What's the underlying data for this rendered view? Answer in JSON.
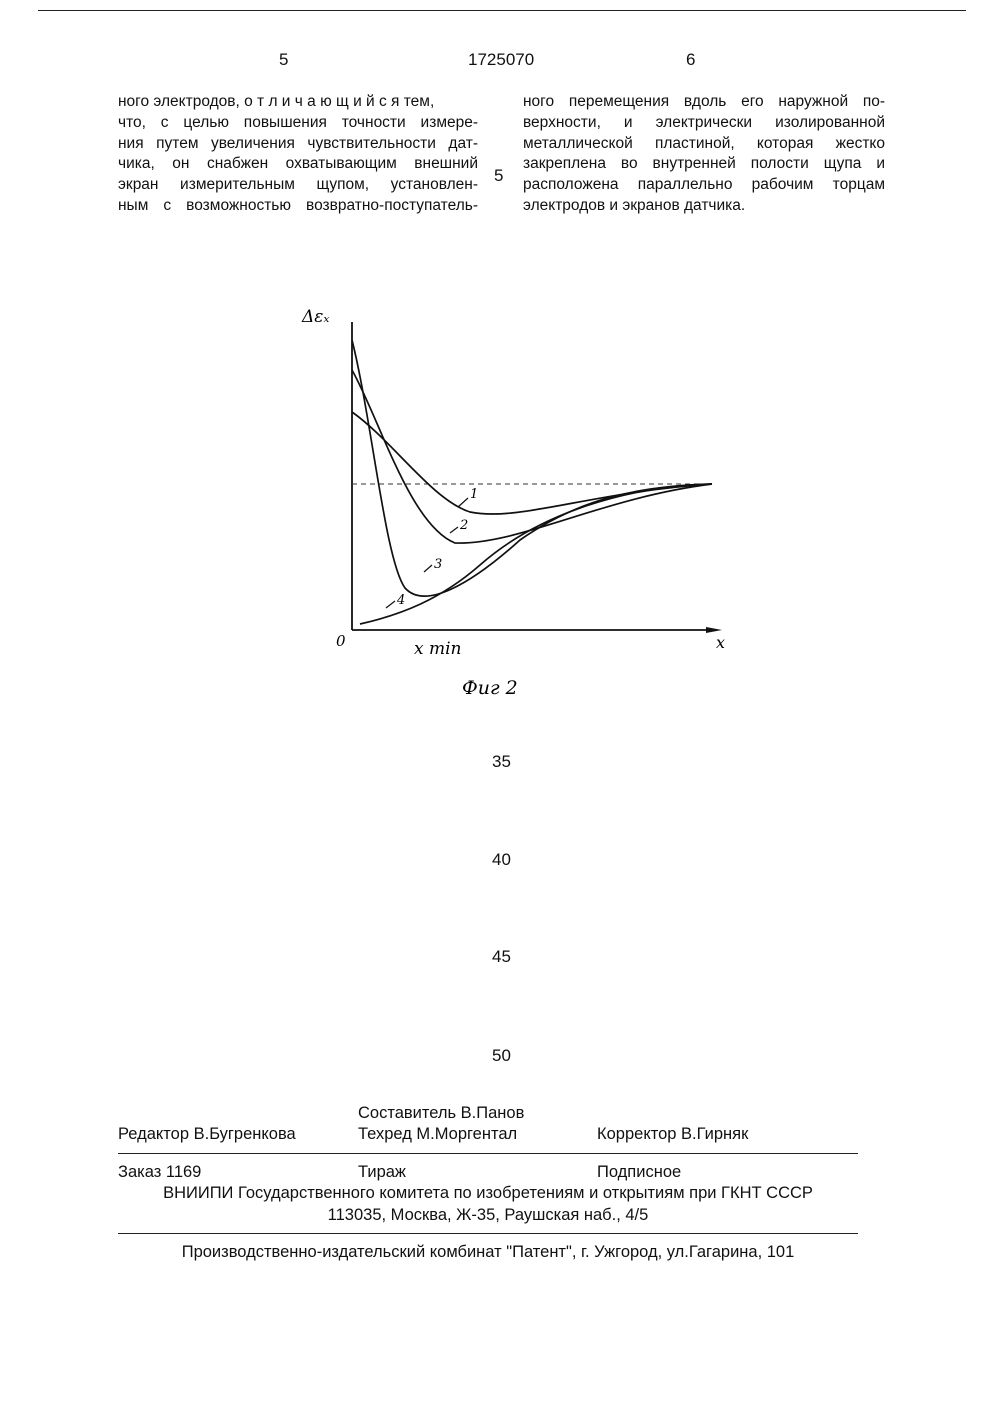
{
  "header": {
    "page_left": "5",
    "patent_number": "1725070",
    "page_right": "6"
  },
  "left_column": {
    "lines": [
      "ного электродов, о т л и ч а ю щ и й с я тем,",
      "что, с целью повышения точности измере-",
      "ния путем увеличения чувствительности дат-",
      "чика, он снабжен охватывающим внешний",
      "экран измерительным щупом, установлен-",
      "ным с возможностью возвратно-поступатель-"
    ]
  },
  "right_column": {
    "lines": [
      "ного перемещения вдоль его наружной по-",
      "верхности, и электрически изолированной",
      "металлической пластиной, которая жестко",
      "закреплена во внутренней полости щупа и",
      "расположена параллельно рабочим торцам",
      "электродов и экранов датчика."
    ]
  },
  "margin_line_numbers": [
    "5",
    "35",
    "40",
    "45",
    "50"
  ],
  "figure": {
    "caption": "Фиг 2",
    "axis_y_label": "Δεₓ",
    "axis_x_label": "x min",
    "origin_label": "0",
    "axis_x_end_label": "x",
    "curve_labels": [
      "1",
      "2",
      "3",
      "4"
    ]
  },
  "footer": {
    "compiler": "Составитель  В.Панов",
    "editor": "Редактор  В.Бугренкова",
    "techred": "Техред М.Моргентал",
    "corrector": "Корректор  В.Гирняк",
    "order": "Заказ 1169",
    "circulation": "Тираж",
    "subscription": "Подписное",
    "institute": "ВНИИПИ Государственного комитета по изобретениям и открытиям при ГКНТ СССР",
    "address": "113035, Москва, Ж-35, Раушская наб., 4/5",
    "publisher": "Производственно-издательский комбинат \"Патент\", г. Ужгород, ул.Гагарина, 101"
  },
  "colors": {
    "ink": "#111111",
    "paper": "#ffffff"
  }
}
